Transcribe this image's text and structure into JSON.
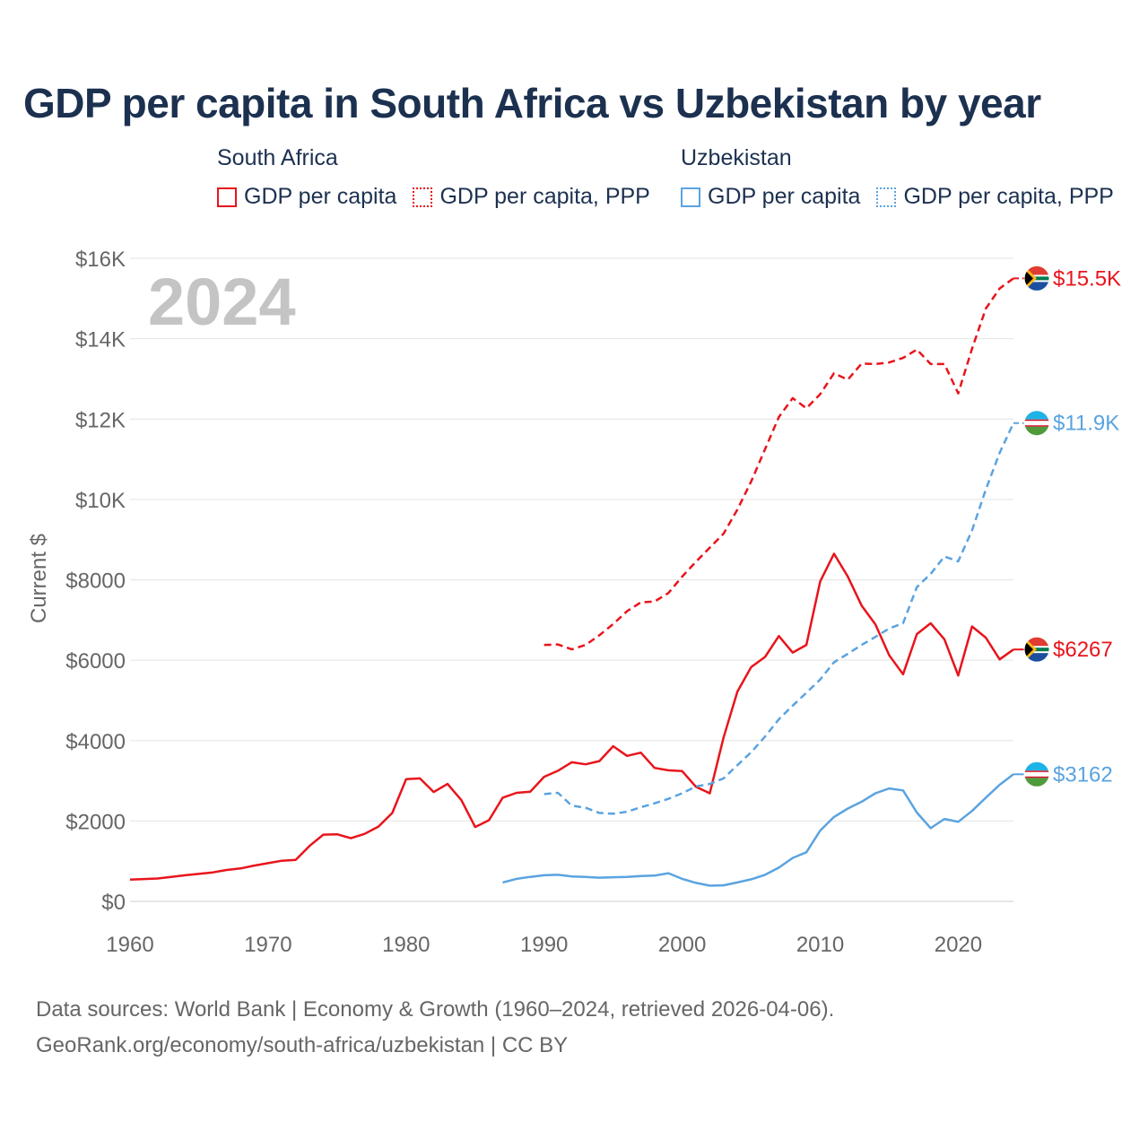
{
  "title": "GDP per capita in South Africa vs Uzbekistan by year",
  "legend": {
    "south_africa": {
      "country": "South Africa",
      "gdp_label": "GDP per capita",
      "ppp_label": "GDP per capita, PPP"
    },
    "uzbekistan": {
      "country": "Uzbekistan",
      "gdp_label": "GDP per capita",
      "ppp_label": "GDP per capita, PPP"
    }
  },
  "colors": {
    "south_africa": "#e8141c",
    "uzbekistan": "#5aa3e0",
    "title": "#1c3150",
    "axis_text": "#666666",
    "grid": "#e3e3e3",
    "year_watermark": "#c4c4c4"
  },
  "footer": {
    "line1": "Data sources: World Bank | Economy & Growth (1960–2024, retrieved 2026-04-06).",
    "line2": "GeoRank.org/economy/south-africa/uzbekistan | CC BY"
  },
  "chart_data": {
    "type": "line",
    "title": "GDP per capita in South Africa vs Uzbekistan by year",
    "year_label": "2024",
    "xlabel": "",
    "ylabel": "Current $",
    "xlim": [
      1960,
      2024
    ],
    "ylim": [
      0,
      16000
    ],
    "x_ticks": [
      1960,
      1970,
      1980,
      1990,
      2000,
      2010,
      2020
    ],
    "y_ticks": [
      {
        "value": 0,
        "label": "$0"
      },
      {
        "value": 2000,
        "label": "$2000"
      },
      {
        "value": 4000,
        "label": "$4000"
      },
      {
        "value": 6000,
        "label": "$6000"
      },
      {
        "value": 8000,
        "label": "$8000"
      },
      {
        "value": 10000,
        "label": "$10K"
      },
      {
        "value": 12000,
        "label": "$12K"
      },
      {
        "value": 14000,
        "label": "$14K"
      },
      {
        "value": 16000,
        "label": "$16K"
      }
    ],
    "series": [
      {
        "name": "South Africa GDP per capita",
        "country": "south_africa",
        "style": "solid",
        "end_label": "$6267",
        "x": [
          1960,
          1962,
          1964,
          1966,
          1967,
          1968,
          1969,
          1970,
          1971,
          1972,
          1973,
          1974,
          1975,
          1976,
          1977,
          1978,
          1979,
          1980,
          1981,
          1982,
          1983,
          1984,
          1985,
          1986,
          1987,
          1988,
          1989,
          1990,
          1991,
          1992,
          1993,
          1994,
          1995,
          1996,
          1997,
          1998,
          1999,
          2000,
          2001,
          2002,
          2003,
          2004,
          2005,
          2006,
          2007,
          2008,
          2009,
          2010,
          2011,
          2012,
          2013,
          2014,
          2015,
          2016,
          2017,
          2018,
          2019,
          2020,
          2021,
          2022,
          2023,
          2024
        ],
        "values": [
          540,
          570,
          650,
          720,
          780,
          820,
          890,
          950,
          1010,
          1030,
          1380,
          1660,
          1670,
          1570,
          1680,
          1860,
          2200,
          3040,
          3060,
          2720,
          2920,
          2520,
          1850,
          2020,
          2580,
          2700,
          2730,
          3100,
          3250,
          3460,
          3410,
          3490,
          3860,
          3620,
          3700,
          3320,
          3260,
          3240,
          2850,
          2690,
          4080,
          5220,
          5830,
          6080,
          6600,
          6190,
          6380,
          7960,
          8650,
          8080,
          7360,
          6890,
          6120,
          5650,
          6650,
          6920,
          6520,
          5620,
          6840,
          6560,
          6020,
          6267
        ]
      },
      {
        "name": "South Africa GDP per capita, PPP",
        "country": "south_africa",
        "style": "dashed",
        "end_label": "$15.5K",
        "x": [
          1990,
          1991,
          1992,
          1993,
          1994,
          1995,
          1996,
          1997,
          1998,
          1999,
          2000,
          2001,
          2002,
          2003,
          2004,
          2005,
          2006,
          2007,
          2008,
          2009,
          2010,
          2011,
          2012,
          2013,
          2014,
          2015,
          2016,
          2017,
          2018,
          2019,
          2020,
          2021,
          2022,
          2023,
          2024
        ],
        "values": [
          6380,
          6390,
          6270,
          6380,
          6620,
          6900,
          7220,
          7440,
          7460,
          7670,
          8080,
          8450,
          8800,
          9150,
          9750,
          10450,
          11250,
          12050,
          12520,
          12270,
          12620,
          13140,
          12980,
          13380,
          13370,
          13410,
          13520,
          13730,
          13370,
          13370,
          12640,
          13750,
          14750,
          15250,
          15500
        ]
      },
      {
        "name": "Uzbekistan GDP per capita",
        "country": "uzbekistan",
        "style": "solid",
        "end_label": "$3162",
        "x": [
          1987,
          1988,
          1989,
          1990,
          1991,
          1992,
          1993,
          1994,
          1995,
          1996,
          1997,
          1998,
          1999,
          2000,
          2001,
          2002,
          2003,
          2004,
          2005,
          2006,
          2007,
          2008,
          2009,
          2010,
          2011,
          2012,
          2013,
          2014,
          2015,
          2016,
          2017,
          2018,
          2019,
          2020,
          2021,
          2022,
          2023,
          2024
        ],
        "values": [
          470,
          560,
          610,
          650,
          660,
          620,
          610,
          590,
          600,
          610,
          630,
          640,
          700,
          560,
          460,
          390,
          400,
          470,
          550,
          660,
          840,
          1080,
          1220,
          1760,
          2100,
          2310,
          2480,
          2690,
          2810,
          2760,
          2210,
          1820,
          2050,
          1980,
          2250,
          2580,
          2900,
          3162
        ]
      },
      {
        "name": "Uzbekistan GDP per capita, PPP",
        "country": "uzbekistan",
        "style": "dashed",
        "end_label": "$11.9K",
        "x": [
          1990,
          1991,
          1992,
          1993,
          1994,
          1995,
          1996,
          1997,
          1998,
          1999,
          2000,
          2001,
          2002,
          2003,
          2004,
          2005,
          2006,
          2007,
          2008,
          2009,
          2010,
          2011,
          2012,
          2013,
          2014,
          2015,
          2016,
          2017,
          2018,
          2019,
          2020,
          2021,
          2022,
          2023,
          2024
        ],
        "values": [
          2670,
          2700,
          2380,
          2330,
          2200,
          2180,
          2230,
          2340,
          2440,
          2550,
          2690,
          2860,
          2920,
          3060,
          3390,
          3710,
          4100,
          4530,
          4870,
          5190,
          5520,
          5950,
          6160,
          6380,
          6580,
          6790,
          6920,
          7820,
          8150,
          8580,
          8460,
          9230,
          10250,
          11160,
          11900
        ]
      }
    ]
  }
}
